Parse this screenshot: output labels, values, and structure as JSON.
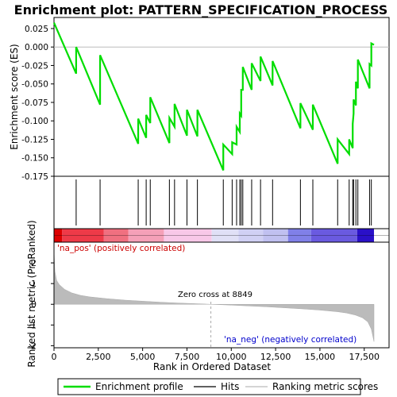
{
  "chart_data": {
    "type": "line",
    "title": "Enrichment plot: PATTERN_SPECIFICATION_PROCESS",
    "panels": {
      "es": {
        "ylabel": "Enrichment score (ES)",
        "ylim": [
          -0.175,
          0.04
        ],
        "yticks": [
          0.025,
          0.0,
          -0.025,
          -0.05,
          -0.075,
          -0.1,
          -0.125,
          -0.15,
          -0.175
        ],
        "ytick_labels": [
          "0.025",
          "0.000",
          "-0.025",
          "-0.050",
          "-0.075",
          "-0.100",
          "-0.125",
          "-0.150",
          "-0.175"
        ],
        "grid": false
      },
      "metric": {
        "ylabel": "Ranked list metric (PreRanked)",
        "ylim": [
          -2.1,
          3.0
        ],
        "yticks": [
          2,
          1,
          0,
          -1,
          -2
        ],
        "ytick_labels": [
          "2",
          "1",
          "0",
          "-1",
          "-2"
        ],
        "xlabel": "Rank in Ordered Dataset",
        "xlim": [
          0,
          18900
        ],
        "xticks": [
          0,
          2500,
          5000,
          7500,
          10000,
          12500,
          15000,
          17500
        ],
        "xtick_labels": [
          "0",
          "2,500",
          "5,000",
          "7,500",
          "10,000",
          "12,500",
          "15,000",
          "17,500"
        ]
      }
    },
    "annotations": {
      "pos_label": "'na_pos' (positively correlated)",
      "neg_label": "'na_neg' (negatively correlated)",
      "zero_cross": "Zero cross at 8849",
      "zero_cross_rank": 8849
    },
    "series": [
      {
        "name": "Enrichment profile",
        "color": "#00dd00",
        "x": [
          0,
          1250,
          1250,
          2600,
          2600,
          4750,
          4750,
          5200,
          5200,
          5430,
          5430,
          6510,
          6510,
          6800,
          6800,
          7500,
          7500,
          8090,
          8090,
          9550,
          9550,
          10050,
          10050,
          10300,
          10300,
          10480,
          10480,
          10560,
          10560,
          10650,
          10650,
          11150,
          11150,
          11650,
          11650,
          12330,
          12330,
          13900,
          13900,
          14600,
          14600,
          16000,
          16000,
          16650,
          16650,
          16850,
          16850,
          16900,
          16900,
          17030,
          17030,
          17140,
          17140,
          17800,
          17800,
          17900,
          17900,
          18050
        ],
        "y": [
          0.033,
          -0.036,
          0.0,
          -0.078,
          -0.011,
          -0.131,
          -0.097,
          -0.123,
          -0.092,
          -0.103,
          -0.068,
          -0.13,
          -0.096,
          -0.108,
          -0.077,
          -0.12,
          -0.085,
          -0.121,
          -0.085,
          -0.167,
          -0.132,
          -0.145,
          -0.129,
          -0.132,
          -0.108,
          -0.115,
          -0.09,
          -0.093,
          -0.058,
          -0.058,
          -0.027,
          -0.058,
          -0.022,
          -0.046,
          -0.013,
          -0.052,
          -0.019,
          -0.11,
          -0.076,
          -0.112,
          -0.078,
          -0.158,
          -0.125,
          -0.145,
          -0.125,
          -0.137,
          -0.104,
          -0.09,
          -0.071,
          -0.079,
          -0.047,
          -0.056,
          -0.017,
          -0.056,
          -0.023,
          -0.025,
          0.005,
          0.003
        ]
      }
    ],
    "hits": [
      1250,
      2600,
      4750,
      5200,
      5430,
      6510,
      6800,
      7500,
      8090,
      9550,
      10050,
      10300,
      10480,
      10560,
      10650,
      11150,
      11650,
      12330,
      13900,
      14600,
      16000,
      16650,
      16850,
      16900,
      17030,
      17140,
      17800,
      17900
    ],
    "heatmap_bands": [
      {
        "from": 0,
        "to": 450,
        "color": "#dd0000"
      },
      {
        "from": 450,
        "to": 2800,
        "color": "#ee3a48"
      },
      {
        "from": 2800,
        "to": 4200,
        "color": "#f07080"
      },
      {
        "from": 4200,
        "to": 6200,
        "color": "#f5a0b8"
      },
      {
        "from": 6200,
        "to": 8900,
        "color": "#f8c8e8"
      },
      {
        "from": 8900,
        "to": 10400,
        "color": "#e0e0f6"
      },
      {
        "from": 10400,
        "to": 11800,
        "color": "#d0d0f4"
      },
      {
        "from": 11800,
        "to": 13200,
        "color": "#c0c0f0"
      },
      {
        "from": 13200,
        "to": 14500,
        "color": "#8080e8"
      },
      {
        "from": 14500,
        "to": 17100,
        "color": "#6a5ae0"
      },
      {
        "from": 17100,
        "to": 18050,
        "color": "#2a10c8"
      }
    ],
    "metric_profile": {
      "x": [
        0,
        50,
        150,
        300,
        600,
        1000,
        1500,
        2000,
        3000,
        4000,
        5000,
        6000,
        7000,
        8000,
        8849,
        10000,
        11000,
        12000,
        13000,
        14000,
        15000,
        16000,
        16500,
        17000,
        17400,
        17700,
        17900,
        18000,
        18050
      ],
      "y": [
        2.6,
        1.6,
        1.15,
        0.95,
        0.72,
        0.55,
        0.43,
        0.36,
        0.27,
        0.2,
        0.15,
        0.1,
        0.06,
        0.03,
        0.0,
        -0.04,
        -0.08,
        -0.12,
        -0.17,
        -0.22,
        -0.28,
        -0.36,
        -0.42,
        -0.52,
        -0.65,
        -0.85,
        -1.2,
        -1.6,
        -1.8
      ]
    },
    "legend": {
      "placement": "bottom",
      "items": [
        {
          "label": "Enrichment profile",
          "color": "#00dd00"
        },
        {
          "label": "Hits",
          "color": "#000000"
        },
        {
          "label": "Ranking metric scores",
          "color": "#bbbbbb"
        }
      ]
    }
  }
}
